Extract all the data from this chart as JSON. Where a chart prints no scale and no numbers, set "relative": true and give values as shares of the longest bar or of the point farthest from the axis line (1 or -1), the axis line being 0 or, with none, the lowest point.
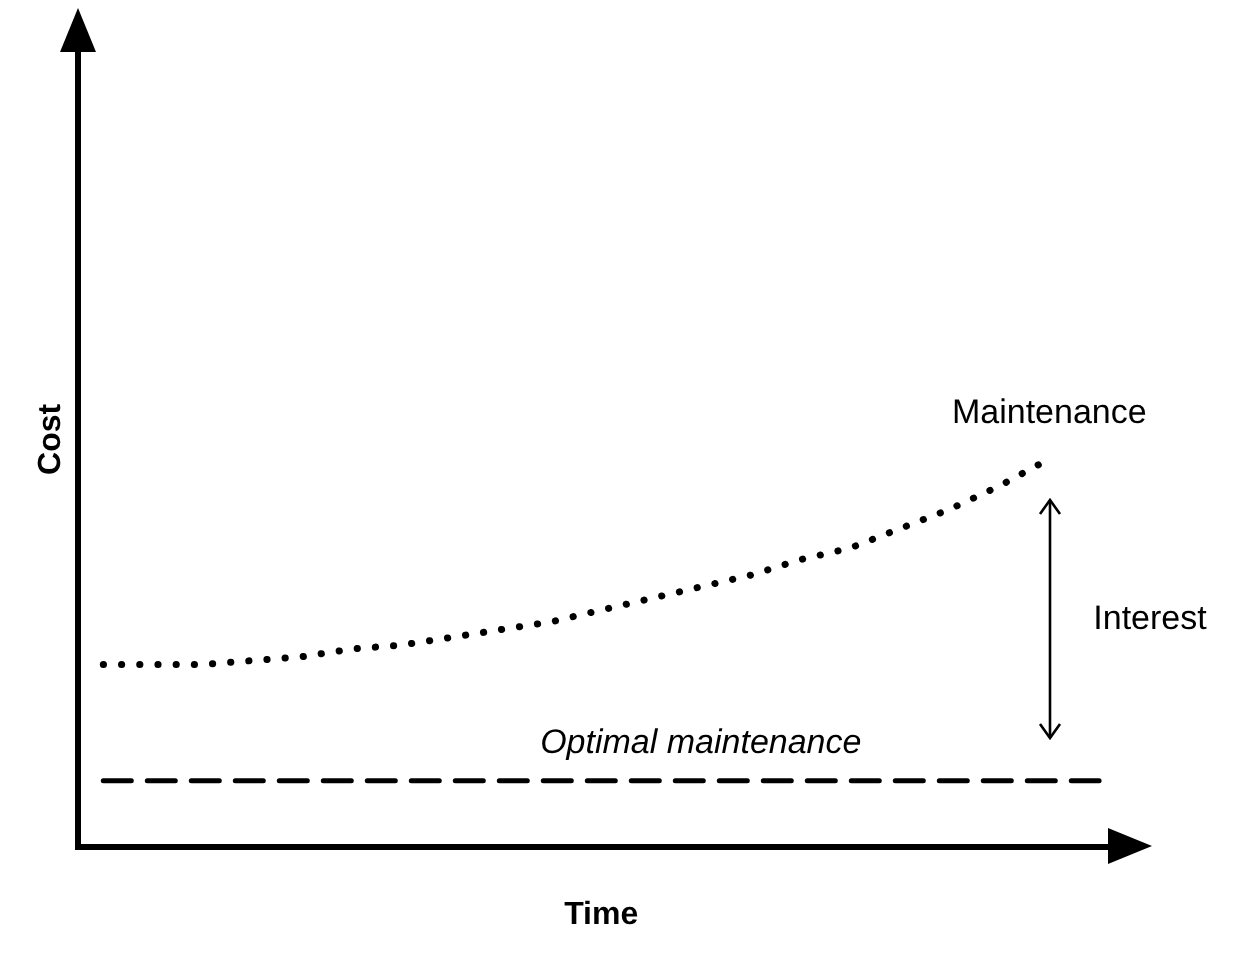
{
  "chart_data": {
    "type": "line",
    "relative": true,
    "xlabel": "Time",
    "ylabel": "Cost",
    "legend": false,
    "grid": false,
    "marker": "none",
    "categories": [
      null,
      null,
      null,
      null,
      null,
      null,
      null,
      null,
      null,
      null,
      null,
      null,
      null,
      null,
      null,
      null,
      null,
      null,
      null,
      null,
      null
    ],
    "series": [
      {
        "name": "Maintenance",
        "color": "#000000",
        "line_style": "dotted",
        "values": [
          0.47,
          0.47,
          0.47,
          0.48,
          0.49,
          0.51,
          0.52,
          0.54,
          0.56,
          0.58,
          0.61,
          0.64,
          0.67,
          0.7,
          0.74,
          0.77,
          0.82,
          0.87,
          0.93,
          1,
          null
        ]
      },
      {
        "name": "Optimal maintenance",
        "color": "#000000",
        "line_style": "dashed",
        "values": [
          0.17,
          0.17,
          0.17,
          0.17,
          0.17,
          0.17,
          0.17,
          0.17,
          0.17,
          0.17,
          0.17,
          0.17,
          0.17,
          0.17,
          0.17,
          0.17,
          0.17,
          0.17,
          0.17,
          0.17,
          0.17
        ]
      }
    ],
    "annotations": [
      "Interest"
    ]
  }
}
